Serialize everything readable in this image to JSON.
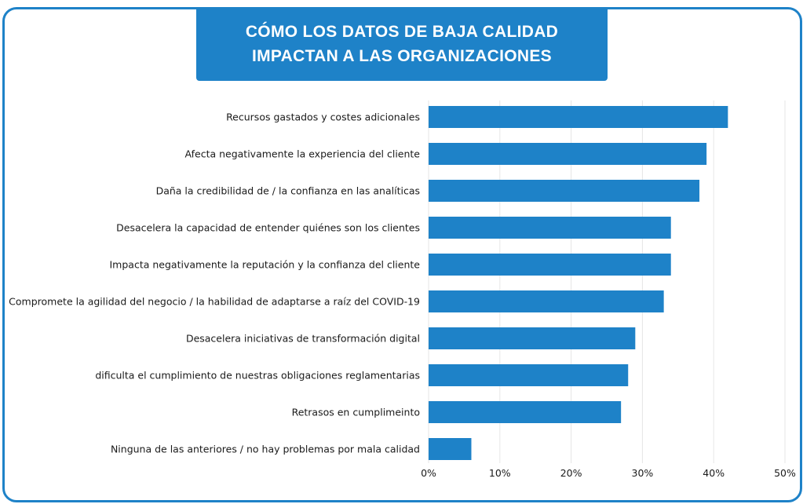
{
  "header": {
    "title": "CÓMO LOS DATOS DE BAJA CALIDAD\nIMPACTAN A LAS ORGANIZACIONES"
  },
  "colors": {
    "accent": "#1e82c8",
    "bar": "#1e82c8",
    "grid": "#e6e6e6"
  },
  "chart_data": {
    "type": "bar",
    "orientation": "horizontal",
    "title": "CÓMO LOS DATOS DE BAJA CALIDAD IMPACTAN A LAS ORGANIZACIONES",
    "xlabel": "",
    "ylabel": "",
    "xlim": [
      0,
      50
    ],
    "x_ticks": [
      "0%",
      "10%",
      "20%",
      "30%",
      "40%",
      "50%"
    ],
    "grid": true,
    "legend": "none",
    "categories": [
      "Recursos gastados y costes adicionales",
      "Afecta negativamente la experiencia del cliente",
      "Daña la credibilidad de / la confianza en las analíticas",
      "Desacelera la capacidad de entender quiénes son los clientes",
      "Impacta negativamente la reputación y la confianza del cliente",
      "Compromete la agilidad del negocio / la habilidad de adaptarse a raíz del COVID-19",
      "Desacelera iniciativas de transformación digital",
      "dificulta el cumplimiento de nuestras obligaciones reglamentarias",
      "Retrasos en cumplimeinto",
      "Ninguna de las anteriores / no hay problemas por mala calidad"
    ],
    "values": [
      42,
      39,
      38,
      34,
      34,
      33,
      29,
      28,
      27,
      6
    ]
  }
}
